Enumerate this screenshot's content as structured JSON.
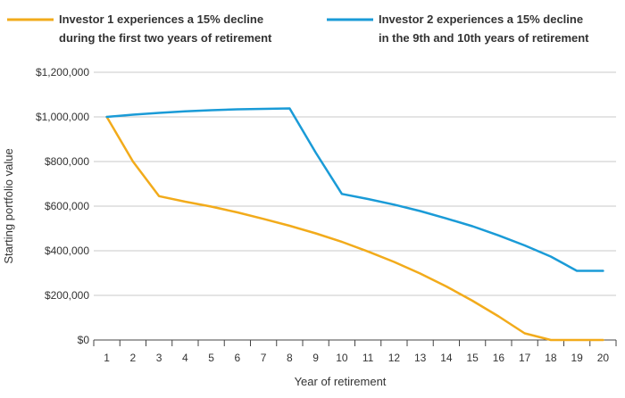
{
  "chart_data": {
    "type": "line",
    "title": "",
    "xlabel": "Year of retirement",
    "ylabel": "Starting portfolio value",
    "xlim": [
      0,
      20
    ],
    "ylim": [
      0,
      1200000
    ],
    "x_ticks": [
      "1",
      "2",
      "3",
      "4",
      "5",
      "6",
      "7",
      "8",
      "9",
      "10",
      "11",
      "12",
      "13",
      "14",
      "15",
      "16",
      "17",
      "18",
      "19",
      "20"
    ],
    "y_ticks": [
      {
        "value": 0,
        "label": "$0"
      },
      {
        "value": 200000,
        "label": "$200,000"
      },
      {
        "value": 400000,
        "label": "$400,000"
      },
      {
        "value": 600000,
        "label": "$600,000"
      },
      {
        "value": 800000,
        "label": "$800,000"
      },
      {
        "value": 1000000,
        "label": "$1,000,000"
      },
      {
        "value": 1200000,
        "label": "$1,200,000"
      }
    ],
    "grid": true,
    "legend_position": "top",
    "series": [
      {
        "name": "Investor 1",
        "legend_lines": [
          "Investor 1 experiences a 15% decline",
          "during the first two years of retirement"
        ],
        "color": "#F2AB1B",
        "x": [
          0.5,
          1.5,
          2.5,
          3.5,
          4.5,
          5.5,
          6.5,
          7.5,
          8.5,
          9.5,
          10.5,
          11.5,
          12.5,
          13.5,
          14.5,
          15.5,
          16.5,
          17.5,
          18.5,
          19.5
        ],
        "values": [
          1000000,
          800000,
          645000,
          620000,
          598000,
          572000,
          543000,
          512000,
          478000,
          440000,
          397000,
          350000,
          298000,
          240000,
          176000,
          106000,
          30000,
          0,
          0,
          0
        ]
      },
      {
        "name": "Investor 2",
        "legend_lines": [
          "Investor 2 experiences a 15% decline",
          "in the 9th and 10th years of retirement"
        ],
        "color": "#1A9BD7",
        "x": [
          0.5,
          1.5,
          2.5,
          3.5,
          4.5,
          5.5,
          6.5,
          7.5,
          8.5,
          9.5,
          10.5,
          11.5,
          12.5,
          13.5,
          14.5,
          15.5,
          16.5,
          17.5,
          18.5,
          19.5
        ],
        "values": [
          1000000,
          1010000,
          1018000,
          1025000,
          1030000,
          1034000,
          1036000,
          1038000,
          840000,
          655000,
          632000,
          607000,
          578000,
          545000,
          510000,
          469000,
          424000,
          374000,
          310000,
          310000
        ]
      }
    ]
  }
}
